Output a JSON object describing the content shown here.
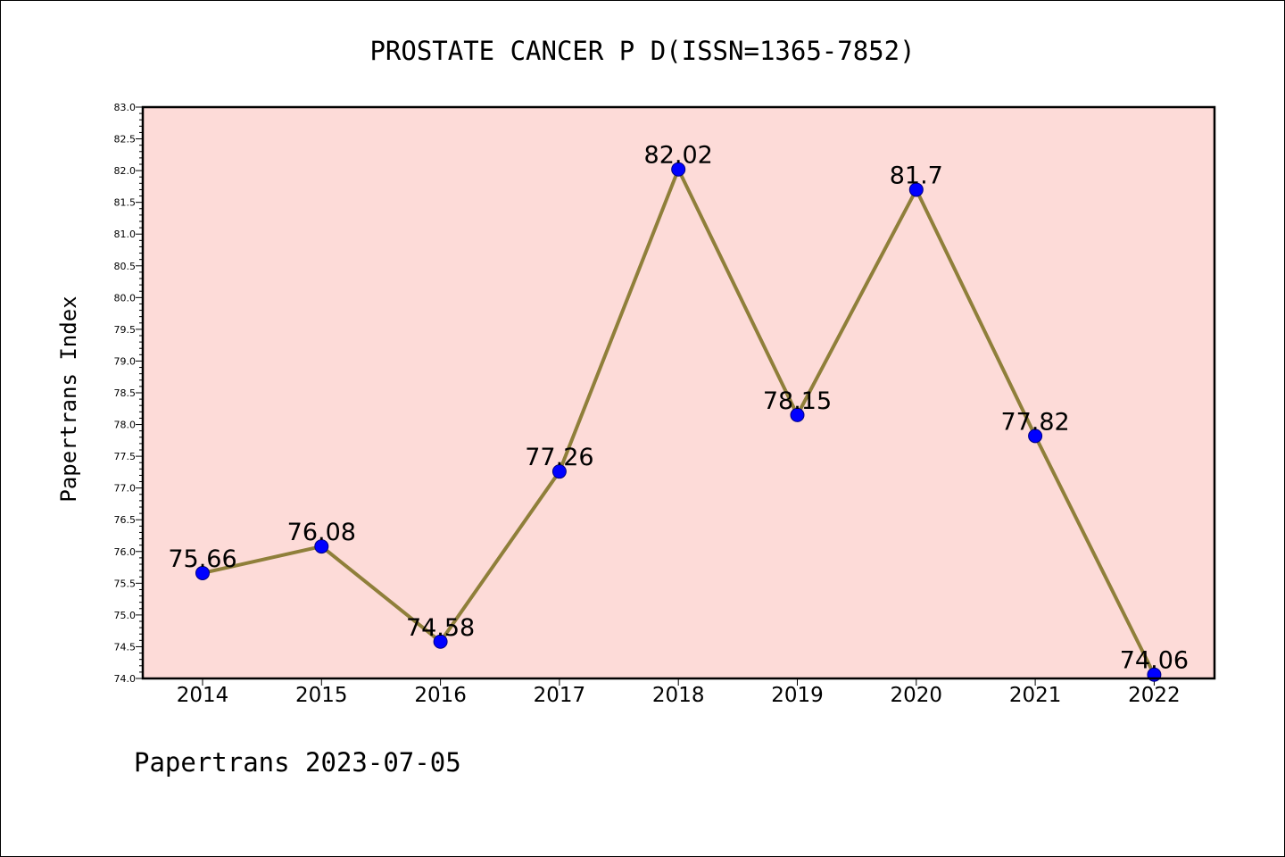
{
  "chart_data": {
    "type": "line",
    "title": "PROSTATE CANCER P D(ISSN=1365-7852)",
    "xlabel": "",
    "ylabel": "Papertrans Index",
    "categories": [
      "2014",
      "2015",
      "2016",
      "2017",
      "2018",
      "2019",
      "2020",
      "2021",
      "2022"
    ],
    "series": [
      {
        "values": [
          75.66,
          76.08,
          74.58,
          77.26,
          82.02,
          78.15,
          81.7,
          77.82,
          74.06
        ],
        "data_labels": [
          "75.66",
          "76.08",
          "74.58",
          "77.26",
          "82.02",
          "78.15",
          "81.7",
          "77.82",
          "74.06"
        ]
      }
    ],
    "ylim": [
      74.0,
      83.0
    ],
    "y_ticks": [
      "74.0",
      "74.5",
      "75.0",
      "75.5",
      "76.0",
      "76.5",
      "77.0",
      "77.5",
      "78.0",
      "78.5",
      "79.0",
      "79.5",
      "80.0",
      "80.5",
      "81.0",
      "81.5",
      "82.0",
      "82.5",
      "83.0"
    ],
    "grid": false,
    "legend": "none",
    "colors": {
      "plot_background": "#fddbd8",
      "line": "#8f7f3a",
      "marker_fill": "#0000ff",
      "marker_edge": "#000080"
    }
  },
  "footer": "Papertrans 2023-07-05"
}
